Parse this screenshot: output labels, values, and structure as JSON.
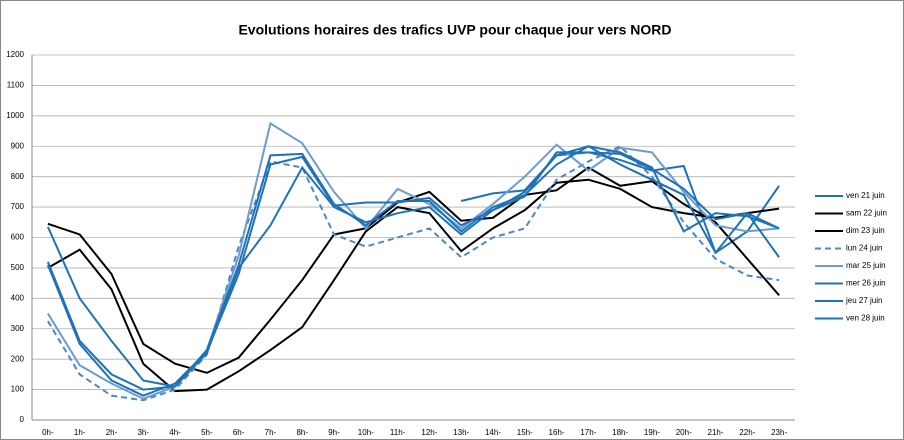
{
  "chart_data": {
    "type": "line",
    "title": "Evolutions horaires des trafics UVP pour chaque jour vers NORD",
    "categories": [
      "0h-",
      "1h-",
      "2h-",
      "3h-",
      "4h-",
      "5h-",
      "6h-",
      "7h-",
      "8h-",
      "9h-",
      "10h-",
      "11h-",
      "12h-",
      "13h-",
      "14h-",
      "15h-",
      "16h-",
      "17h-",
      "18h-",
      "19h-",
      "20h-",
      "21h-",
      "22h-",
      "23h-"
    ],
    "ylim": [
      0,
      1200
    ],
    "yticks": [
      0,
      100,
      200,
      300,
      400,
      500,
      600,
      700,
      800,
      900,
      1000,
      1100,
      1200
    ],
    "grid": true,
    "legend": "right",
    "series": [
      {
        "name": "ven 21 juin",
        "color": "#1f72b8",
        "dash": false,
        "values": [
          null,
          null,
          null,
          null,
          null,
          null,
          null,
          null,
          null,
          null,
          null,
          null,
          null,
          720,
          745,
          755,
          870,
          880,
          855,
          820,
          835,
          550,
          620,
          770
        ]
      },
      {
        "name": "sam 22 juin",
        "color": "#000000",
        "dash": false,
        "values": [
          645,
          610,
          480,
          250,
          185,
          155,
          205,
          330,
          460,
          610,
          630,
          715,
          750,
          655,
          665,
          740,
          755,
          830,
          770,
          785,
          710,
          650,
          530,
          410
        ]
      },
      {
        "name": "dim 23 juin",
        "color": "#000000",
        "dash": false,
        "values": [
          500,
          560,
          430,
          185,
          95,
          100,
          160,
          230,
          305,
          460,
          620,
          700,
          680,
          555,
          630,
          690,
          780,
          790,
          760,
          700,
          680,
          665,
          680,
          695
        ]
      },
      {
        "name": "lun 24 juin",
        "color": "#4f86c6",
        "dash": true,
        "values": [
          325,
          150,
          80,
          65,
          100,
          215,
          570,
          850,
          830,
          610,
          570,
          600,
          630,
          535,
          600,
          630,
          790,
          850,
          900,
          800,
          650,
          530,
          475,
          460
        ]
      },
      {
        "name": "mar 25 juin",
        "color": "#6b9bd2",
        "dash": false,
        "values": [
          350,
          180,
          120,
          70,
          110,
          230,
          540,
          975,
          910,
          750,
          630,
          760,
          710,
          630,
          710,
          800,
          905,
          820,
          895,
          880,
          750,
          640,
          620,
          630
        ]
      },
      {
        "name": "mer 26 juin",
        "color": "#1f72b8",
        "dash": false,
        "values": [
          635,
          400,
          260,
          130,
          110,
          220,
          500,
          640,
          830,
          700,
          650,
          680,
          700,
          610,
          690,
          750,
          870,
          900,
          880,
          830,
          620,
          680,
          670,
          630
        ]
      },
      {
        "name": "jeu 27 juin",
        "color": "#1f72b8",
        "dash": false,
        "values": [
          520,
          260,
          150,
          100,
          110,
          230,
          510,
          870,
          875,
          710,
          640,
          720,
          720,
          620,
          700,
          740,
          840,
          900,
          840,
          790,
          740,
          550,
          680,
          535
        ]
      },
      {
        "name": "ven 28 juin",
        "color": "#1f72b8",
        "dash": false,
        "values": [
          510,
          250,
          130,
          80,
          120,
          225,
          480,
          840,
          865,
          705,
          715,
          715,
          730,
          640,
          690,
          735,
          880,
          880,
          875,
          825,
          760,
          660,
          680,
          630
        ]
      }
    ]
  }
}
